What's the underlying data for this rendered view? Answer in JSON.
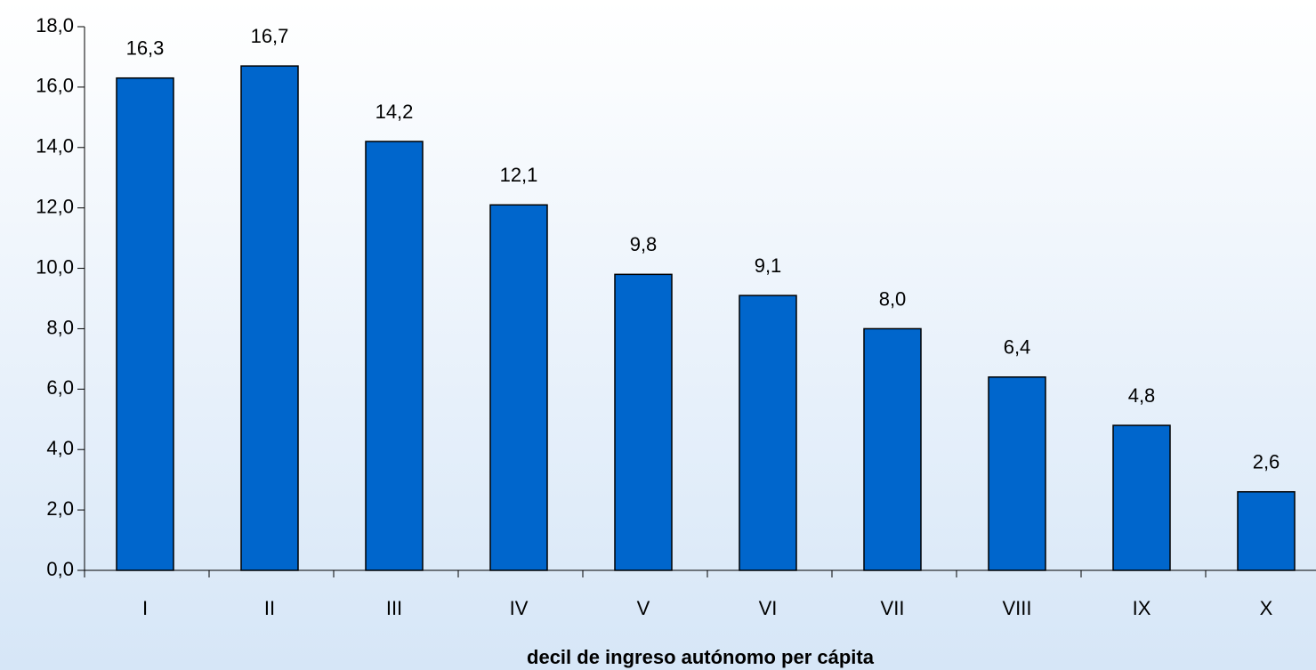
{
  "chart_data": {
    "type": "bar",
    "x_label": "decil de ingreso autónomo per cápita",
    "categories": [
      "I",
      "II",
      "III",
      "IV",
      "V",
      "VI",
      "VII",
      "VIII",
      "IX",
      "X"
    ],
    "values": [
      16.3,
      16.7,
      14.2,
      12.1,
      9.8,
      9.1,
      8.0,
      6.4,
      4.8,
      2.6
    ],
    "value_labels": [
      "16,3",
      "16,7",
      "14,2",
      "12,1",
      "9,8",
      "9,1",
      "8,0",
      "6,4",
      "4,8",
      "2,6"
    ],
    "color": "#0066cc",
    "ylim": [
      0,
      18
    ],
    "yticks": [
      {
        "value": 0,
        "label": "0,0"
      },
      {
        "value": 2,
        "label": "2,0"
      },
      {
        "value": 4,
        "label": "4,0"
      },
      {
        "value": 6,
        "label": "6,0"
      },
      {
        "value": 8,
        "label": "8,0"
      },
      {
        "value": 10,
        "label": "10,0"
      },
      {
        "value": 12,
        "label": "12,0"
      },
      {
        "value": 14,
        "label": "14,0"
      },
      {
        "value": 16,
        "label": "16,0"
      },
      {
        "value": 18,
        "label": "18,0"
      }
    ],
    "grid": false
  }
}
